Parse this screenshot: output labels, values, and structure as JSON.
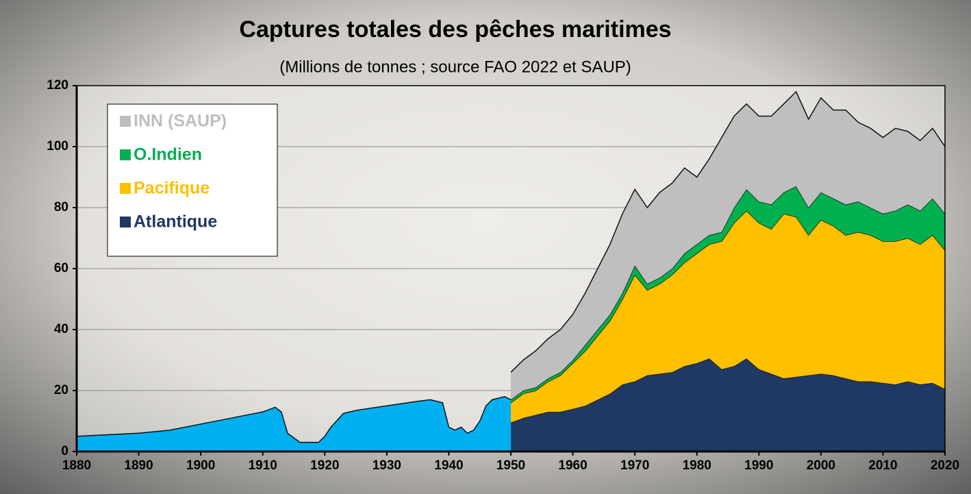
{
  "chart_data": {
    "type": "area",
    "title": "Captures totales des pêches maritimes",
    "subtitle": "(Millions de tonnes ; source FAO 2022 et SAUP)",
    "xlim": [
      1880,
      2020
    ],
    "xticks": [
      1880,
      1890,
      1900,
      1910,
      1920,
      1930,
      1940,
      1950,
      1960,
      1970,
      1980,
      1990,
      2000,
      2010,
      2020
    ],
    "ylim": [
      0,
      120
    ],
    "yticks": [
      0,
      20,
      40,
      60,
      80,
      100,
      120
    ],
    "grid": true,
    "legend": "upper left",
    "series": [
      {
        "color": "#00b0f0",
        "x": [
          1880,
          1885,
          1890,
          1895,
          1900,
          1905,
          1910,
          1912,
          1913,
          1914,
          1916,
          1919,
          1920,
          1921,
          1923,
          1925,
          1930,
          1935,
          1937,
          1939,
          1940,
          1941,
          1942,
          1943,
          1944,
          1945,
          1946,
          1947,
          1949,
          1950
        ],
        "values": [
          5,
          5.5,
          6,
          7,
          9,
          11,
          13,
          14.5,
          13,
          6,
          3,
          3,
          5,
          8,
          12.5,
          13.5,
          15,
          16.5,
          17,
          16,
          8,
          7,
          8,
          6,
          7,
          10,
          15,
          17,
          18,
          17
        ]
      },
      {
        "name": "Atlantique",
        "color": "#1f3864",
        "x": [
          1950,
          1952,
          1954,
          1956,
          1958,
          1960,
          1962,
          1964,
          1966,
          1968,
          1970,
          1972,
          1974,
          1976,
          1978,
          1980,
          1982,
          1984,
          1986,
          1988,
          1990,
          1992,
          1994,
          1996,
          1998,
          2000,
          2002,
          2004,
          2006,
          2008,
          2010,
          2012,
          2014,
          2016,
          2018,
          2020
        ],
        "values": [
          9.5,
          11,
          12,
          13,
          13,
          14,
          15,
          17,
          19,
          22,
          23,
          25,
          25.5,
          26,
          28,
          29,
          30.5,
          27,
          28,
          30.5,
          27,
          25.5,
          24,
          24.5,
          25,
          25.5,
          25,
          24,
          23,
          23,
          22.5,
          22,
          23,
          22,
          22.5,
          20.5
        ]
      },
      {
        "name": "Pacifique",
        "color": "#ffc000",
        "x": [
          1950,
          1952,
          1954,
          1956,
          1958,
          1960,
          1962,
          1964,
          1966,
          1968,
          1970,
          1972,
          1974,
          1976,
          1978,
          1980,
          1982,
          1984,
          1986,
          1988,
          1990,
          1992,
          1994,
          1996,
          1998,
          2000,
          2002,
          2004,
          2006,
          2008,
          2010,
          2012,
          2014,
          2016,
          2018,
          2020
        ],
        "values": [
          6.5,
          8,
          8,
          10,
          12,
          15,
          18,
          21,
          24,
          28,
          35,
          28,
          29.5,
          32,
          34,
          36,
          37.5,
          42,
          47,
          48.5,
          48,
          47.5,
          54,
          52.5,
          46,
          50.5,
          49,
          47,
          49,
          48,
          46.5,
          47,
          47,
          46,
          48.5,
          45.5
        ]
      },
      {
        "name": "O.Indien",
        "color": "#00b050",
        "x": [
          1950,
          1952,
          1954,
          1956,
          1958,
          1960,
          1962,
          1964,
          1966,
          1968,
          1970,
          1972,
          1974,
          1976,
          1978,
          1980,
          1982,
          1984,
          1986,
          1988,
          1990,
          1992,
          1994,
          1996,
          1998,
          2000,
          2002,
          2004,
          2006,
          2008,
          2010,
          2012,
          2014,
          2016,
          2018,
          2020
        ],
        "values": [
          1,
          1,
          1,
          1,
          1,
          1,
          2,
          2,
          2,
          2,
          3,
          2,
          2,
          2,
          3,
          3,
          3,
          3,
          5,
          7,
          7,
          8,
          7,
          10,
          9,
          9,
          9,
          10,
          10,
          9,
          9,
          10,
          11,
          11,
          12,
          12
        ]
      },
      {
        "name": "INN (SAUP)",
        "color": "#bfbfbf",
        "x": [
          1950,
          1952,
          1954,
          1956,
          1958,
          1960,
          1962,
          1964,
          1966,
          1968,
          1970,
          1972,
          1974,
          1976,
          1978,
          1980,
          1982,
          1984,
          1986,
          1988,
          1990,
          1992,
          1994,
          1996,
          1998,
          2000,
          2002,
          2004,
          2006,
          2008,
          2010,
          2012,
          2014,
          2016,
          2018,
          2020
        ],
        "values": [
          9,
          10,
          12,
          13,
          14,
          15,
          17,
          20,
          23,
          26,
          25,
          25,
          28,
          28,
          28,
          22,
          25,
          31,
          30,
          28,
          28,
          29,
          29,
          31,
          29,
          31,
          29,
          31,
          26,
          26,
          25,
          27,
          24,
          23,
          23,
          22
        ]
      }
    ]
  }
}
